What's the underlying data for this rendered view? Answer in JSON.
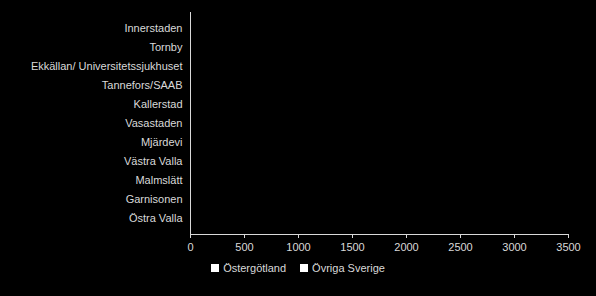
{
  "chart_data": {
    "type": "bar",
    "orientation": "horizontal",
    "stacked": true,
    "categories": [
      "Innerstaden",
      "Tornby",
      "Ekkällan/ Universitetssjukhuset",
      "Tannefors/SAAB",
      "Kallerstad",
      "Vasastaden",
      "Mjärdevi",
      "Västra Valla",
      "Malmslätt",
      "Garnisonen",
      "Östra Valla"
    ],
    "series": [
      {
        "name": "Östergötland",
        "color": "#ffffff",
        "values": [
          null,
          null,
          null,
          null,
          null,
          null,
          null,
          null,
          null,
          null,
          null
        ]
      },
      {
        "name": "Övriga Sverige",
        "color": "#ffffff",
        "values": [
          null,
          null,
          null,
          null,
          null,
          null,
          null,
          null,
          null,
          null,
          null
        ]
      }
    ],
    "xlim": [
      0,
      3500
    ],
    "xticks": [
      0,
      500,
      1000,
      1500,
      2000,
      2500,
      3000,
      3500
    ],
    "grid": false,
    "legend": "bottom"
  }
}
